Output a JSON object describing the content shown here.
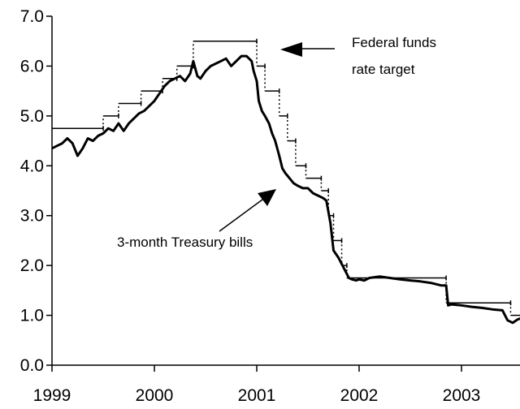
{
  "chart_data": {
    "type": "line",
    "title": "",
    "xlabel": "",
    "ylabel": "",
    "xlim": [
      1999.0,
      2003.6
    ],
    "ylim": [
      0,
      7
    ],
    "x_ticks": [
      "1999",
      "2000",
      "2001",
      "2002",
      "2003"
    ],
    "y_ticks": [
      "0.0",
      "1.0",
      "2.0",
      "3.0",
      "4.0",
      "5.0",
      "6.0",
      "7.0"
    ],
    "grid": false,
    "legend": "none",
    "annotations": [
      {
        "lines": [
          "Federal funds",
          "rate target"
        ],
        "points_to": [
          2001.0,
          6.5
        ]
      },
      {
        "lines": [
          "3-month Treasury bills"
        ],
        "points_to": [
          2001.2,
          3.3
        ]
      }
    ],
    "series": [
      {
        "name": "Federal funds rate target",
        "style": "step",
        "points": [
          [
            1999.0,
            4.75
          ],
          [
            1999.5,
            4.75
          ],
          [
            1999.5,
            5.0
          ],
          [
            1999.65,
            5.0
          ],
          [
            1999.65,
            5.25
          ],
          [
            1999.87,
            5.25
          ],
          [
            1999.87,
            5.5
          ],
          [
            2000.08,
            5.5
          ],
          [
            2000.08,
            5.75
          ],
          [
            2000.22,
            5.75
          ],
          [
            2000.22,
            6.0
          ],
          [
            2000.38,
            6.0
          ],
          [
            2000.38,
            6.5
          ],
          [
            2001.0,
            6.5
          ],
          [
            2001.0,
            6.0
          ],
          [
            2001.08,
            6.0
          ],
          [
            2001.08,
            5.5
          ],
          [
            2001.22,
            5.5
          ],
          [
            2001.22,
            5.0
          ],
          [
            2001.3,
            5.0
          ],
          [
            2001.3,
            4.5
          ],
          [
            2001.38,
            4.5
          ],
          [
            2001.38,
            4.0
          ],
          [
            2001.48,
            4.0
          ],
          [
            2001.48,
            3.75
          ],
          [
            2001.63,
            3.75
          ],
          [
            2001.63,
            3.5
          ],
          [
            2001.7,
            3.5
          ],
          [
            2001.7,
            3.0
          ],
          [
            2001.75,
            3.0
          ],
          [
            2001.75,
            2.5
          ],
          [
            2001.83,
            2.5
          ],
          [
            2001.83,
            2.0
          ],
          [
            2001.88,
            2.0
          ],
          [
            2001.88,
            1.75
          ],
          [
            2002.85,
            1.75
          ],
          [
            2002.85,
            1.25
          ],
          [
            2003.48,
            1.25
          ],
          [
            2003.48,
            1.0
          ],
          [
            2003.6,
            1.0
          ]
        ]
      },
      {
        "name": "3-month Treasury bills",
        "style": "line",
        "points": [
          [
            1999.0,
            4.35
          ],
          [
            1999.05,
            4.4
          ],
          [
            1999.1,
            4.45
          ],
          [
            1999.15,
            4.55
          ],
          [
            1999.2,
            4.45
          ],
          [
            1999.25,
            4.2
          ],
          [
            1999.3,
            4.35
          ],
          [
            1999.35,
            4.55
          ],
          [
            1999.4,
            4.5
          ],
          [
            1999.45,
            4.6
          ],
          [
            1999.5,
            4.65
          ],
          [
            1999.55,
            4.75
          ],
          [
            1999.6,
            4.7
          ],
          [
            1999.65,
            4.85
          ],
          [
            1999.7,
            4.7
          ],
          [
            1999.75,
            4.85
          ],
          [
            1999.8,
            4.95
          ],
          [
            1999.85,
            5.05
          ],
          [
            1999.9,
            5.1
          ],
          [
            1999.95,
            5.2
          ],
          [
            2000.0,
            5.3
          ],
          [
            2000.05,
            5.45
          ],
          [
            2000.1,
            5.6
          ],
          [
            2000.15,
            5.7
          ],
          [
            2000.2,
            5.75
          ],
          [
            2000.25,
            5.8
          ],
          [
            2000.3,
            5.7
          ],
          [
            2000.35,
            5.85
          ],
          [
            2000.38,
            6.1
          ],
          [
            2000.42,
            5.8
          ],
          [
            2000.45,
            5.75
          ],
          [
            2000.5,
            5.9
          ],
          [
            2000.55,
            6.0
          ],
          [
            2000.6,
            6.05
          ],
          [
            2000.65,
            6.1
          ],
          [
            2000.7,
            6.15
          ],
          [
            2000.75,
            6.0
          ],
          [
            2000.8,
            6.1
          ],
          [
            2000.85,
            6.2
          ],
          [
            2000.9,
            6.2
          ],
          [
            2000.95,
            6.1
          ],
          [
            2000.97,
            5.9
          ],
          [
            2001.0,
            5.7
          ],
          [
            2001.02,
            5.3
          ],
          [
            2001.05,
            5.1
          ],
          [
            2001.08,
            5.0
          ],
          [
            2001.12,
            4.85
          ],
          [
            2001.15,
            4.65
          ],
          [
            2001.18,
            4.5
          ],
          [
            2001.22,
            4.2
          ],
          [
            2001.25,
            3.95
          ],
          [
            2001.28,
            3.85
          ],
          [
            2001.32,
            3.75
          ],
          [
            2001.36,
            3.65
          ],
          [
            2001.4,
            3.6
          ],
          [
            2001.45,
            3.55
          ],
          [
            2001.5,
            3.55
          ],
          [
            2001.55,
            3.45
          ],
          [
            2001.6,
            3.4
          ],
          [
            2001.65,
            3.35
          ],
          [
            2001.68,
            3.3
          ],
          [
            2001.72,
            2.85
          ],
          [
            2001.75,
            2.3
          ],
          [
            2001.8,
            2.15
          ],
          [
            2001.85,
            1.95
          ],
          [
            2001.9,
            1.75
          ],
          [
            2001.93,
            1.72
          ],
          [
            2001.97,
            1.7
          ],
          [
            2002.0,
            1.72
          ],
          [
            2002.05,
            1.7
          ],
          [
            2002.1,
            1.75
          ],
          [
            2002.2,
            1.78
          ],
          [
            2002.3,
            1.75
          ],
          [
            2002.4,
            1.72
          ],
          [
            2002.5,
            1.7
          ],
          [
            2002.6,
            1.68
          ],
          [
            2002.7,
            1.65
          ],
          [
            2002.8,
            1.6
          ],
          [
            2002.85,
            1.6
          ],
          [
            2002.87,
            1.2
          ],
          [
            2002.9,
            1.22
          ],
          [
            2003.0,
            1.2
          ],
          [
            2003.1,
            1.17
          ],
          [
            2003.2,
            1.15
          ],
          [
            2003.3,
            1.12
          ],
          [
            2003.4,
            1.1
          ],
          [
            2003.45,
            0.9
          ],
          [
            2003.5,
            0.85
          ],
          [
            2003.55,
            0.92
          ],
          [
            2003.6,
            0.95
          ]
        ]
      }
    ]
  }
}
